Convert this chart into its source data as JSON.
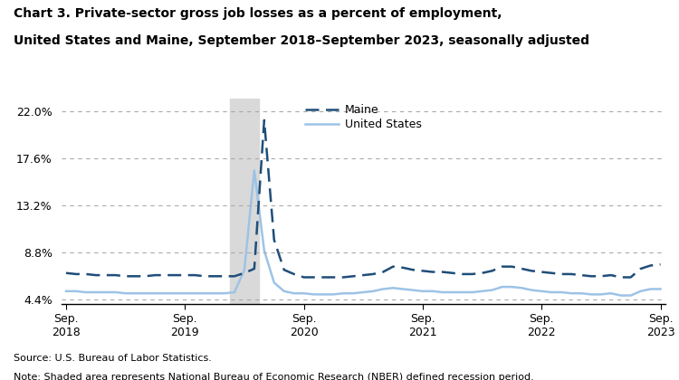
{
  "title_line1": "Chart 3. Private-sector gross job losses as a percent of employment,",
  "title_line2": "United States and Maine, September 2018–September 2023, seasonally adjusted",
  "source": "Source: U.S. Bureau of Labor Statistics.",
  "note": "Note: Shaded area represents National Bureau of Economic Research (NBER) defined recession period.",
  "yticks": [
    4.4,
    8.8,
    13.2,
    17.6,
    22.0
  ],
  "ytick_labels": [
    "4.4%",
    "8.8%",
    "13.2%",
    "17.6%",
    "22.0%"
  ],
  "ylim_low": 4.0,
  "ylim_high": 23.2,
  "xlim_low": -0.5,
  "xlim_high": 60.5,
  "xtick_positions": [
    0,
    12,
    24,
    36,
    48,
    60
  ],
  "xtick_labels": [
    "Sep.\n2018",
    "Sep.\n2019",
    "Sep.\n2020",
    "Sep.\n2021",
    "Sep.\n2022",
    "Sep.\n2023"
  ],
  "maine_color": "#1f4e79",
  "us_color": "#9dc3e6",
  "recession_color": "#d9d9d9",
  "recession_start": 16.5,
  "recession_end": 19.5,
  "maine_data": [
    6.9,
    6.8,
    6.8,
    6.7,
    6.7,
    6.7,
    6.6,
    6.6,
    6.6,
    6.7,
    6.7,
    6.7,
    6.7,
    6.7,
    6.6,
    6.6,
    6.6,
    6.6,
    6.9,
    7.3,
    21.2,
    10.0,
    7.2,
    6.8,
    6.5,
    6.5,
    6.5,
    6.5,
    6.5,
    6.6,
    6.7,
    6.8,
    7.0,
    7.5,
    7.4,
    7.2,
    7.1,
    7.0,
    7.0,
    6.9,
    6.8,
    6.8,
    6.9,
    7.1,
    7.5,
    7.5,
    7.3,
    7.1,
    7.0,
    6.9,
    6.8,
    6.8,
    6.7,
    6.6,
    6.6,
    6.7,
    6.5,
    6.5,
    7.3,
    7.6,
    7.7
  ],
  "us_data": [
    5.2,
    5.2,
    5.1,
    5.1,
    5.1,
    5.1,
    5.0,
    5.0,
    5.0,
    5.0,
    5.0,
    5.0,
    5.0,
    5.0,
    5.0,
    5.0,
    5.0,
    5.1,
    7.2,
    16.5,
    9.0,
    6.0,
    5.2,
    5.0,
    5.0,
    4.9,
    4.9,
    4.9,
    5.0,
    5.0,
    5.1,
    5.2,
    5.4,
    5.5,
    5.4,
    5.3,
    5.2,
    5.2,
    5.1,
    5.1,
    5.1,
    5.1,
    5.2,
    5.3,
    5.6,
    5.6,
    5.5,
    5.3,
    5.2,
    5.1,
    5.1,
    5.0,
    5.0,
    4.9,
    4.9,
    5.0,
    4.8,
    4.8,
    5.2,
    5.4,
    5.4
  ]
}
